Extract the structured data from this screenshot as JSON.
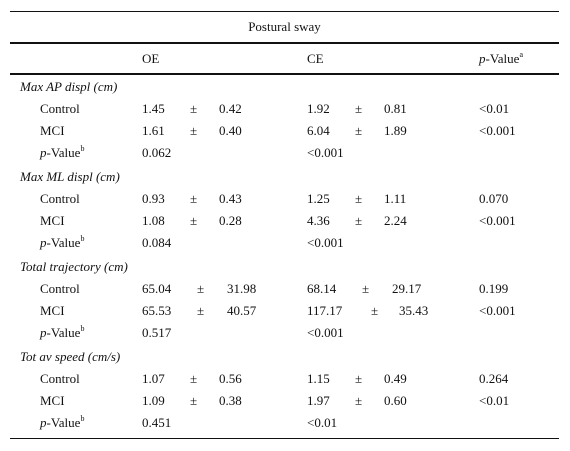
{
  "table": {
    "super_header": "Postural sway",
    "columns": {
      "oe": "OE",
      "ce": "CE",
      "pvalue_prefix": "p",
      "pvalue_rest": "-Value",
      "pvalue_sup": "a"
    },
    "pm": "±",
    "pvalue_row": {
      "prefix": "p",
      "rest": "-Value",
      "sup": "b"
    },
    "sections": [
      {
        "title": "Max AP displ (cm)",
        "rows": [
          {
            "label": "Control",
            "oe_mean": "1.45",
            "oe_sd": "0.42",
            "ce_mean": "1.92",
            "ce_sd": "0.81",
            "p": "<0.01"
          },
          {
            "label": "MCI",
            "oe_mean": "1.61",
            "oe_sd": "0.40",
            "ce_mean": "6.04",
            "ce_sd": "1.89",
            "p": "<0.001"
          }
        ],
        "p_oe": "0.062",
        "p_ce": "<0.001"
      },
      {
        "title": "Max ML displ (cm)",
        "rows": [
          {
            "label": "Control",
            "oe_mean": "0.93",
            "oe_sd": "0.43",
            "ce_mean": "1.25",
            "ce_sd": "1.11",
            "p": "0.070"
          },
          {
            "label": "MCI",
            "oe_mean": "1.08",
            "oe_sd": "0.28",
            "ce_mean": "4.36",
            "ce_sd": "2.24",
            "p": "<0.001"
          }
        ],
        "p_oe": "0.084",
        "p_ce": "<0.001"
      },
      {
        "title": "Total trajectory (cm)",
        "rows": [
          {
            "label": "Control",
            "oe_mean": "65.04",
            "oe_sd": "31.98",
            "ce_mean": "68.14",
            "ce_sd": "29.17",
            "p": "0.199"
          },
          {
            "label": "MCI",
            "oe_mean": "65.53",
            "oe_sd": "40.57",
            "ce_mean": "117.17",
            "ce_sd": "35.43",
            "p": "<0.001"
          }
        ],
        "p_oe": "0.517",
        "p_ce": "<0.001"
      },
      {
        "title": "Tot av speed (cm/s)",
        "rows": [
          {
            "label": "Control",
            "oe_mean": "1.07",
            "oe_sd": "0.56",
            "ce_mean": "1.15",
            "ce_sd": "0.49",
            "p": "0.264"
          },
          {
            "label": "MCI",
            "oe_mean": "1.09",
            "oe_sd": "0.38",
            "ce_mean": "1.97",
            "ce_sd": "0.60",
            "p": "<0.01"
          }
        ],
        "p_oe": "0.451",
        "p_ce": "<0.01"
      }
    ]
  }
}
